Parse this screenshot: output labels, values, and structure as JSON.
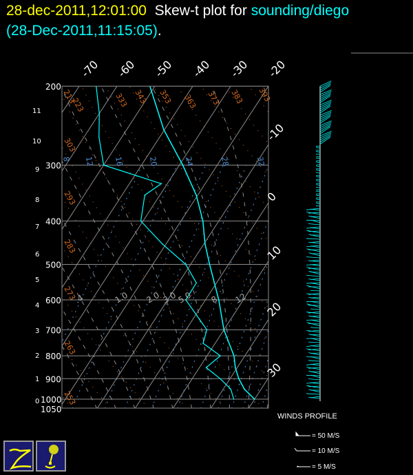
{
  "header": {
    "timestamp": "28-dec-2011,12:01:00",
    "title_text": "Skew-t plot for",
    "source": "sounding/diego",
    "obs_time": "(28-Dec-2011,11:15:05)",
    "period": "."
  },
  "colors": {
    "timestamp": "#ffff00",
    "source": "#00ffff",
    "trace": "#00ffff",
    "dry_adiabat": "#d2691e",
    "mixing_ratio": "#4f8fd8",
    "grid": "#8c8c8c"
  },
  "chart_data": {
    "type": "line",
    "subtype": "skew-t log-p",
    "pressure_levels": [
      "200",
      "300",
      "400",
      "500",
      "600",
      "700",
      "800",
      "900",
      "1000",
      "1050"
    ],
    "height_labels_km": [
      "11",
      "10",
      "9",
      "8",
      "7",
      "6",
      "5",
      "4",
      "3",
      "2",
      "1",
      "0"
    ],
    "temperature_top_labels": [
      "-70",
      "-60",
      "-50",
      "-40",
      "-30",
      "-20"
    ],
    "temperature_right_labels": [
      "-10",
      "0",
      "10",
      "20",
      "30"
    ],
    "dry_adiabat_labels": [
      "213",
      "223",
      "333",
      "343",
      "353",
      "363",
      "373",
      "383",
      "393",
      "303",
      "293",
      "283",
      "273",
      "263",
      "253"
    ],
    "mixing_ratio_labels": [
      "8",
      "12",
      "16",
      "20",
      "24",
      "28",
      "32"
    ],
    "moist_labels": [
      ".4",
      "1.0",
      "2.0",
      "3.0",
      "5.0",
      "8",
      "12"
    ],
    "temperature": {
      "p": [
        200,
        250,
        300,
        350,
        400,
        450,
        500,
        600,
        700,
        800,
        850,
        900,
        950,
        1000
      ],
      "t": [
        -51.3,
        -40.2,
        -29.1,
        -20.4,
        -14.2,
        -9.7,
        -5.0,
        3.5,
        10.0,
        17.1,
        19.5,
        22.3,
        25.6,
        30.0
      ]
    },
    "dewpoint": {
      "p": [
        200,
        230,
        260,
        300,
        330,
        350,
        400,
        450,
        500,
        550,
        600,
        700,
        750,
        800,
        850,
        900,
        950,
        1000
      ],
      "td": [
        -65.5,
        -60,
        -56,
        -50,
        -31.6,
        -34,
        -30.6,
        -21,
        -11.3,
        -5.3,
        -5.2,
        5.5,
        6.8,
        13.5,
        11.8,
        17.4,
        22,
        24.5
      ]
    },
    "winds_profile": {
      "title": "WINDS PROFILE",
      "legend": [
        "= 50 M/S",
        "= 10 M/S",
        "= 5 M/S"
      ]
    }
  }
}
